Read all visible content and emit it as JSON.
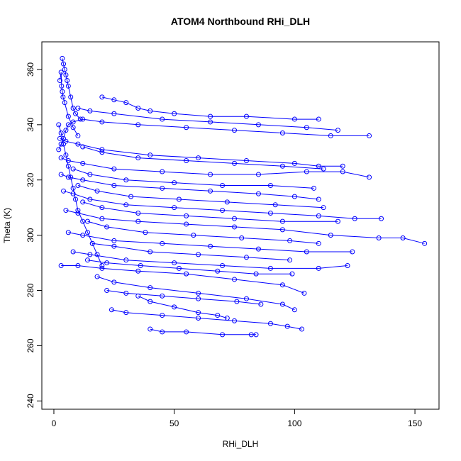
{
  "chart_data": {
    "type": "scatter",
    "title": "ATOM4 Northbound RHi_DLH",
    "xlabel": "RHi_DLH",
    "ylabel": "Theta (K)",
    "xlim": [
      -5,
      160
    ],
    "ylim": [
      237,
      370
    ],
    "xticks": [
      0,
      50,
      100,
      150
    ],
    "yticks": [
      240,
      260,
      280,
      300,
      320,
      340,
      360
    ],
    "grid": false,
    "legend": "none",
    "marker": "open-circle",
    "connected": true,
    "color": "#0000ff",
    "series": [
      {
        "name": "",
        "points": [
          [
            2.5,
            356
          ],
          [
            3,
            359
          ],
          [
            3.2,
            354
          ],
          [
            3.5,
            352
          ],
          [
            3.8,
            350
          ],
          [
            4.5,
            348
          ],
          [
            6,
            343
          ],
          [
            8,
            339
          ],
          [
            10,
            336
          ]
        ]
      },
      {
        "name": "",
        "points": [
          [
            3.5,
            364
          ],
          [
            4,
            362
          ],
          [
            4.5,
            360
          ],
          [
            5,
            358
          ],
          [
            5.5,
            356
          ],
          [
            6,
            354
          ],
          [
            7,
            350
          ],
          [
            8,
            346
          ],
          [
            9,
            344
          ],
          [
            11,
            342
          ]
        ]
      },
      {
        "name": "",
        "points": [
          [
            2,
            331
          ],
          [
            3,
            333
          ],
          [
            4,
            335
          ],
          [
            5,
            338
          ],
          [
            6,
            340
          ],
          [
            8,
            341
          ],
          [
            12,
            342
          ],
          [
            20,
            341
          ],
          [
            35,
            340
          ],
          [
            55,
            339
          ],
          [
            75,
            338
          ],
          [
            95,
            337
          ],
          [
            115,
            336
          ],
          [
            131,
            336
          ]
        ]
      },
      {
        "name": "",
        "points": [
          [
            2.5,
            335
          ],
          [
            5,
            334
          ],
          [
            10,
            333
          ],
          [
            20,
            331
          ],
          [
            40,
            329
          ],
          [
            60,
            328
          ],
          [
            80,
            327
          ],
          [
            100,
            326
          ],
          [
            110,
            325
          ],
          [
            120,
            325
          ]
        ]
      },
      {
        "name": "",
        "points": [
          [
            3,
            328
          ],
          [
            6,
            327
          ],
          [
            12,
            326
          ],
          [
            25,
            324
          ],
          [
            45,
            323
          ],
          [
            65,
            322
          ],
          [
            85,
            322
          ],
          [
            105,
            323
          ],
          [
            120,
            323
          ],
          [
            131,
            321
          ]
        ]
      },
      {
        "name": "",
        "points": [
          [
            3,
            322
          ],
          [
            6,
            321
          ],
          [
            12,
            320
          ],
          [
            25,
            318
          ],
          [
            45,
            317
          ],
          [
            65,
            316
          ],
          [
            85,
            315
          ],
          [
            100,
            314
          ],
          [
            110,
            313
          ]
        ]
      },
      {
        "name": "",
        "points": [
          [
            4,
            316
          ],
          [
            8,
            315
          ],
          [
            15,
            313
          ],
          [
            30,
            311
          ],
          [
            50,
            310
          ],
          [
            70,
            309
          ],
          [
            90,
            308
          ],
          [
            110,
            307
          ],
          [
            125,
            306
          ],
          [
            136,
            306
          ]
        ]
      },
      {
        "name": "",
        "points": [
          [
            5,
            309
          ],
          [
            10,
            308
          ],
          [
            20,
            306
          ],
          [
            35,
            305
          ],
          [
            55,
            304
          ],
          [
            75,
            303
          ],
          [
            95,
            302
          ],
          [
            115,
            300
          ],
          [
            135,
            299
          ],
          [
            145,
            299
          ],
          [
            154,
            297
          ]
        ]
      },
      {
        "name": "",
        "points": [
          [
            6,
            301
          ],
          [
            12,
            300
          ],
          [
            25,
            298
          ],
          [
            45,
            297
          ],
          [
            65,
            296
          ],
          [
            85,
            295
          ],
          [
            105,
            294
          ],
          [
            124,
            294
          ]
        ]
      },
      {
        "name": "",
        "points": [
          [
            8,
            294
          ],
          [
            15,
            293
          ],
          [
            30,
            291
          ],
          [
            50,
            290
          ],
          [
            70,
            289
          ],
          [
            90,
            288
          ],
          [
            110,
            288
          ],
          [
            122,
            289
          ]
        ]
      },
      {
        "name": "",
        "points": [
          [
            3,
            289
          ],
          [
            10,
            289
          ],
          [
            20,
            288
          ],
          [
            35,
            287
          ],
          [
            55,
            286
          ],
          [
            75,
            284
          ],
          [
            95,
            282
          ],
          [
            104,
            279
          ]
        ]
      },
      {
        "name": "",
        "points": [
          [
            18,
            285
          ],
          [
            25,
            283
          ],
          [
            40,
            281
          ],
          [
            60,
            279
          ],
          [
            80,
            277
          ],
          [
            95,
            275
          ],
          [
            100,
            273
          ]
        ]
      },
      {
        "name": "",
        "points": [
          [
            24,
            273
          ],
          [
            30,
            272
          ],
          [
            45,
            271
          ],
          [
            60,
            270
          ],
          [
            75,
            269
          ],
          [
            90,
            268
          ],
          [
            97,
            267
          ],
          [
            103,
            266
          ]
        ]
      },
      {
        "name": "",
        "points": [
          [
            40,
            266
          ],
          [
            45,
            265
          ],
          [
            55,
            265
          ],
          [
            70,
            264
          ],
          [
            82,
            264
          ],
          [
            84,
            264
          ]
        ]
      },
      {
        "name": "",
        "points": [
          [
            20,
            350
          ],
          [
            25,
            349
          ],
          [
            30,
            348
          ],
          [
            35,
            346
          ],
          [
            40,
            345
          ],
          [
            50,
            344
          ],
          [
            65,
            343
          ],
          [
            80,
            343
          ],
          [
            100,
            342
          ],
          [
            110,
            342
          ]
        ]
      },
      {
        "name": "",
        "points": [
          [
            10,
            346
          ],
          [
            15,
            345
          ],
          [
            25,
            344
          ],
          [
            45,
            342
          ],
          [
            65,
            341
          ],
          [
            85,
            340
          ],
          [
            105,
            339
          ],
          [
            118,
            338
          ]
        ]
      },
      {
        "name": "",
        "points": [
          [
            12,
            332
          ],
          [
            20,
            330
          ],
          [
            35,
            328
          ],
          [
            55,
            327
          ],
          [
            75,
            326
          ],
          [
            95,
            325
          ],
          [
            112,
            324
          ]
        ]
      },
      {
        "name": "",
        "points": [
          [
            8,
            324
          ],
          [
            15,
            322
          ],
          [
            30,
            320
          ],
          [
            50,
            319
          ],
          [
            70,
            318
          ],
          [
            90,
            318
          ],
          [
            108,
            317
          ]
        ]
      },
      {
        "name": "",
        "points": [
          [
            10,
            318
          ],
          [
            18,
            316
          ],
          [
            32,
            314
          ],
          [
            52,
            313
          ],
          [
            72,
            312
          ],
          [
            92,
            311
          ],
          [
            112,
            310
          ]
        ]
      },
      {
        "name": "",
        "points": [
          [
            12,
            312
          ],
          [
            20,
            310
          ],
          [
            35,
            308
          ],
          [
            55,
            307
          ],
          [
            75,
            306
          ],
          [
            95,
            305
          ],
          [
            118,
            305
          ]
        ]
      },
      {
        "name": "",
        "points": [
          [
            14,
            305
          ],
          [
            22,
            303
          ],
          [
            38,
            301
          ],
          [
            58,
            300
          ],
          [
            78,
            299
          ],
          [
            98,
            298
          ],
          [
            110,
            297
          ]
        ]
      },
      {
        "name": "",
        "points": [
          [
            16,
            297
          ],
          [
            25,
            296
          ],
          [
            40,
            294
          ],
          [
            60,
            293
          ],
          [
            80,
            292
          ],
          [
            98,
            291
          ]
        ]
      },
      {
        "name": "",
        "points": [
          [
            14,
            291
          ],
          [
            22,
            290
          ],
          [
            36,
            289
          ],
          [
            52,
            288
          ],
          [
            68,
            287
          ],
          [
            84,
            286
          ],
          [
            99,
            286
          ]
        ]
      },
      {
        "name": "",
        "points": [
          [
            22,
            280
          ],
          [
            30,
            279
          ],
          [
            45,
            278
          ],
          [
            60,
            277
          ],
          [
            76,
            276
          ],
          [
            86,
            275
          ]
        ]
      },
      {
        "name": "",
        "points": [
          [
            35,
            278
          ],
          [
            40,
            276
          ],
          [
            50,
            274
          ],
          [
            60,
            272
          ],
          [
            68,
            271
          ],
          [
            72,
            270
          ]
        ]
      },
      {
        "name": "",
        "points": [
          [
            2,
            340
          ],
          [
            3,
            337
          ],
          [
            4,
            333
          ],
          [
            5,
            329
          ],
          [
            6,
            325
          ],
          [
            7,
            321
          ],
          [
            8,
            317
          ],
          [
            9,
            313
          ],
          [
            10,
            309
          ],
          [
            12,
            305
          ],
          [
            14,
            301
          ],
          [
            16,
            297
          ],
          [
            18,
            293
          ],
          [
            20,
            289
          ]
        ]
      }
    ]
  }
}
